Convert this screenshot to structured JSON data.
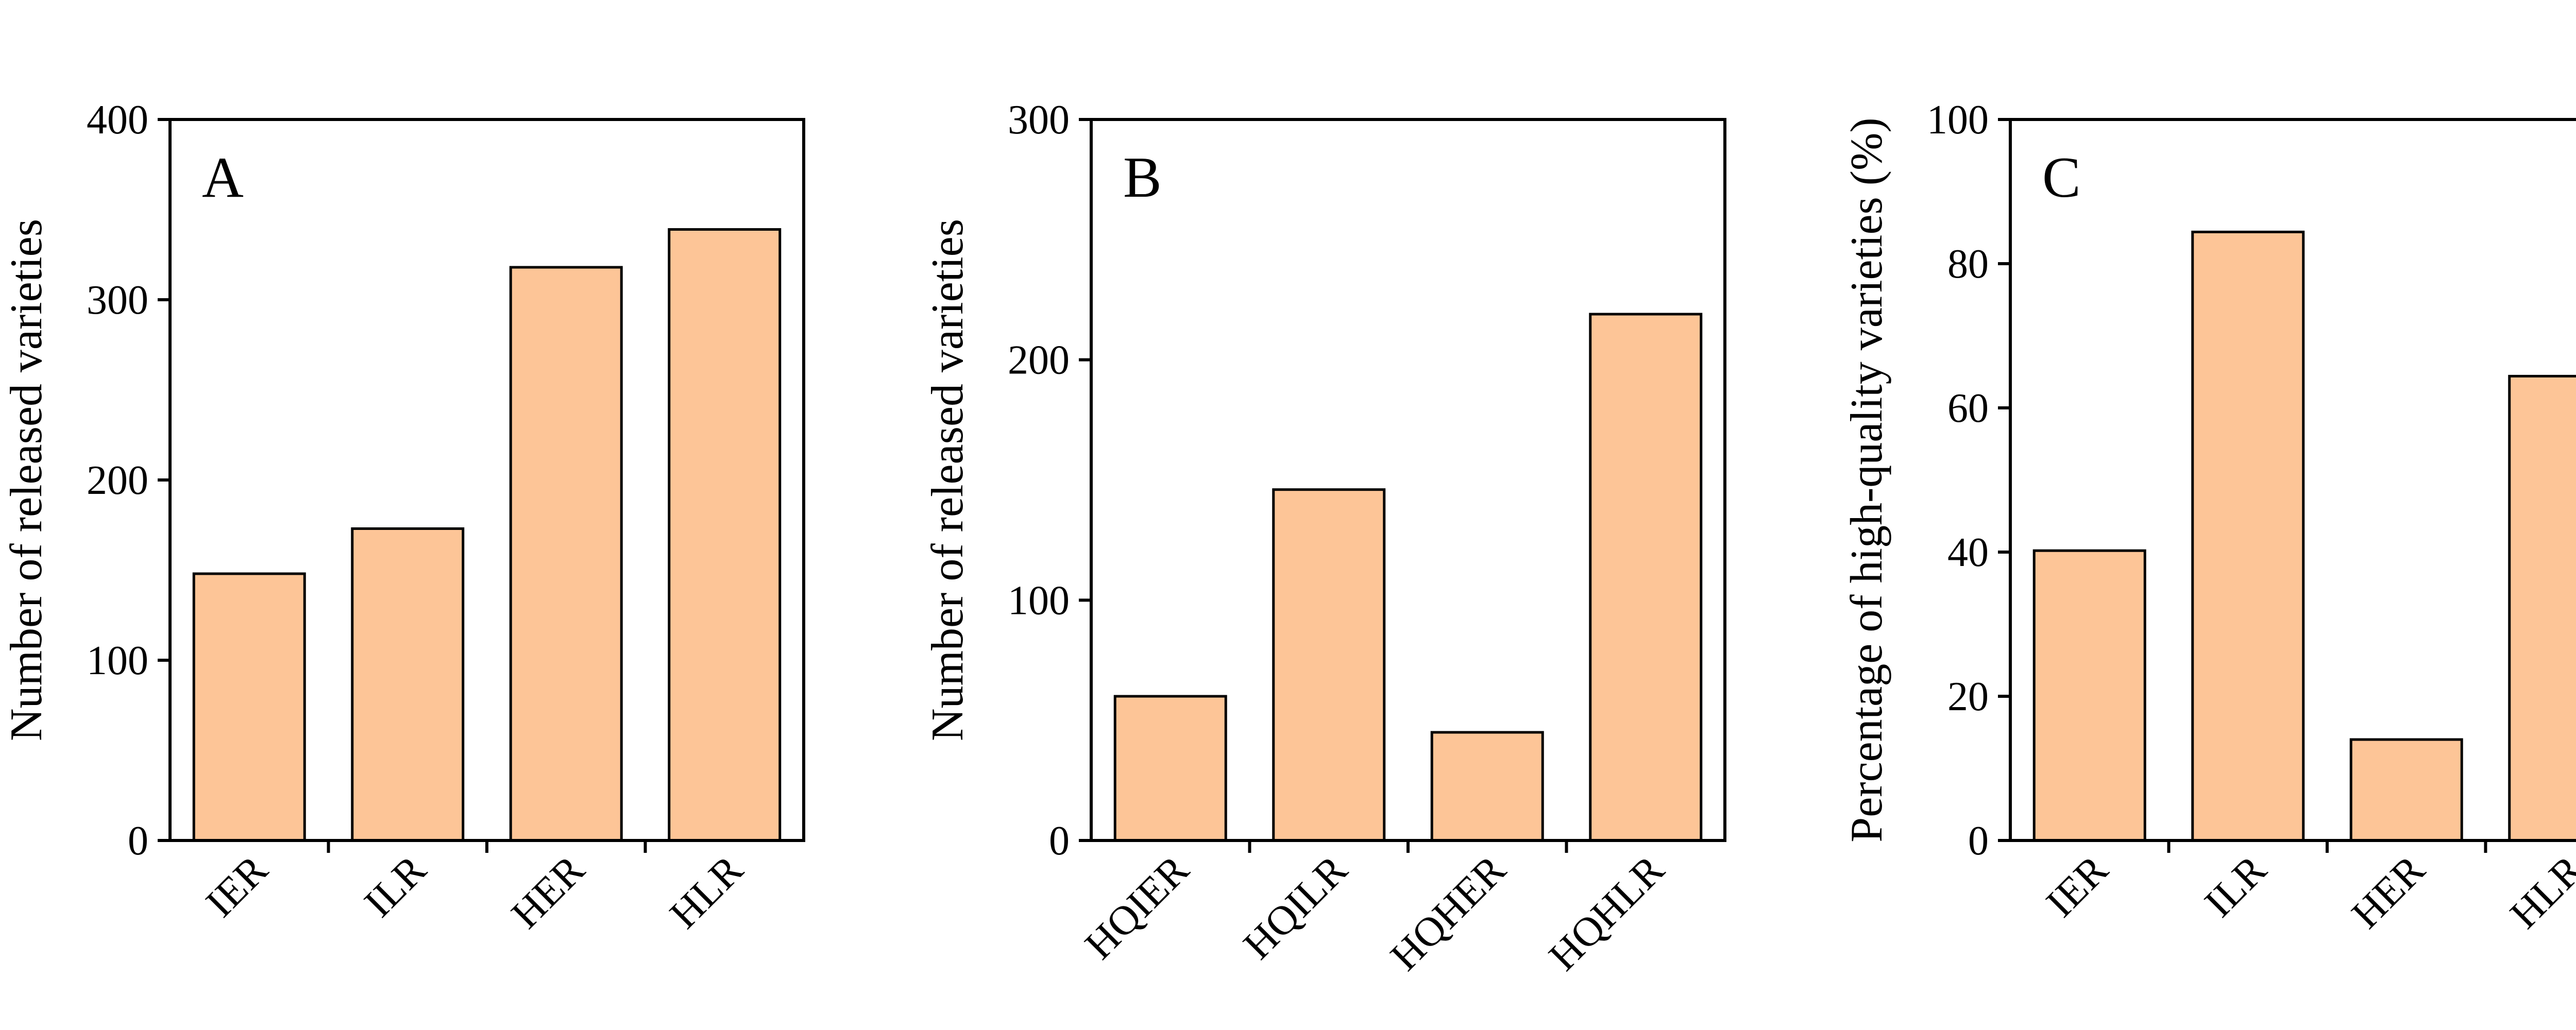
{
  "chart_data": [
    {
      "panel": "A",
      "type": "bar",
      "ylabel": "Number of released varieties",
      "categories": [
        "IER",
        "ILR",
        "HER",
        "HLR"
      ],
      "values": [
        148,
        173,
        318,
        339
      ],
      "ylim": [
        0,
        400
      ],
      "yticks": [
        0,
        100,
        200,
        300,
        400
      ],
      "grid": false
    },
    {
      "panel": "B",
      "type": "bar",
      "ylabel": "Number of released varieties",
      "categories": [
        "HQIER",
        "HQILR",
        "HQHER",
        "HQHLR"
      ],
      "values": [
        60,
        146,
        45,
        219
      ],
      "ylim": [
        0,
        300
      ],
      "yticks": [
        0,
        100,
        200,
        300
      ],
      "grid": false
    },
    {
      "panel": "C",
      "type": "bar",
      "ylabel": "Percentage of high-quality varieties (%)",
      "categories": [
        "IER",
        "ILR",
        "HER",
        "HLR"
      ],
      "values": [
        40.2,
        84.4,
        14.0,
        64.4
      ],
      "ylim": [
        0,
        100
      ],
      "yticks": [
        0,
        20,
        40,
        60,
        80,
        100
      ],
      "grid": false
    }
  ],
  "colors": {
    "bar_fill": "#FDC597",
    "bar_stroke": "#000000",
    "axis": "#000000"
  }
}
